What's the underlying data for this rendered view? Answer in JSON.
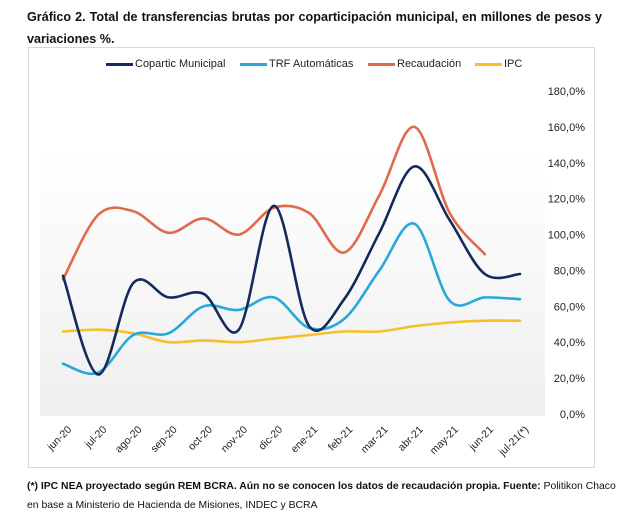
{
  "title": "Gráfico 2. Total de transferencias brutas por coparticipación municipal, en millones de pesos y variaciones %.",
  "footnote": {
    "bold_part": "(*) IPC NEA proyectado según REM BCRA. Aún no se conocen los datos de recaudación propia. Fuente:",
    "normal_part": " Politikon Chaco en base a Ministerio de Hacienda de Misiones, INDEC y BCRA"
  },
  "chart_data": {
    "type": "line",
    "title": "Total de transferencias brutas por coparticipación municipal, en millones de pesos y variaciones %",
    "xlabel": "",
    "ylabel": "",
    "categories": [
      "jun-20",
      "jul-20",
      "ago-20",
      "sep-20",
      "oct-20",
      "nov-20",
      "dic-20",
      "ene-21",
      "feb-21",
      "mar-21",
      "abr-21",
      "may-21",
      "jun-21",
      "jul-21(*)"
    ],
    "ylim": [
      0,
      180
    ],
    "yticks": [
      0,
      20,
      40,
      60,
      80,
      100,
      120,
      140,
      160,
      180
    ],
    "ytick_labels": [
      "0,0%",
      "20,0%",
      "40,0%",
      "60,0%",
      "80,0%",
      "100,0%",
      "120,0%",
      "140,0%",
      "160,0%",
      "180,0%"
    ],
    "y_axis_side": "right",
    "grid": false,
    "smooth": true,
    "legend_position": "top",
    "series": [
      {
        "name": "Copartic Municipal",
        "color": "#132a5c",
        "values": [
          77,
          22,
          73,
          65,
          67,
          47,
          116,
          49,
          64,
          101,
          138,
          108,
          78,
          78
        ]
      },
      {
        "name": "TRF Automáticas",
        "color": "#27a9dc",
        "values": [
          28,
          23,
          44,
          45,
          60,
          58,
          65,
          48,
          53,
          80,
          106,
          63,
          65,
          64
        ]
      },
      {
        "name": "Recaudación",
        "color": "#e06a4b",
        "values": [
          75,
          111,
          113,
          101,
          109,
          100,
          115,
          112,
          90,
          122,
          160,
          112,
          89,
          null
        ]
      },
      {
        "name": "IPC",
        "color": "#f4c12a",
        "values": [
          46,
          47,
          45,
          40,
          41,
          40,
          42,
          44,
          46,
          46,
          49,
          51,
          52,
          52
        ]
      }
    ]
  }
}
